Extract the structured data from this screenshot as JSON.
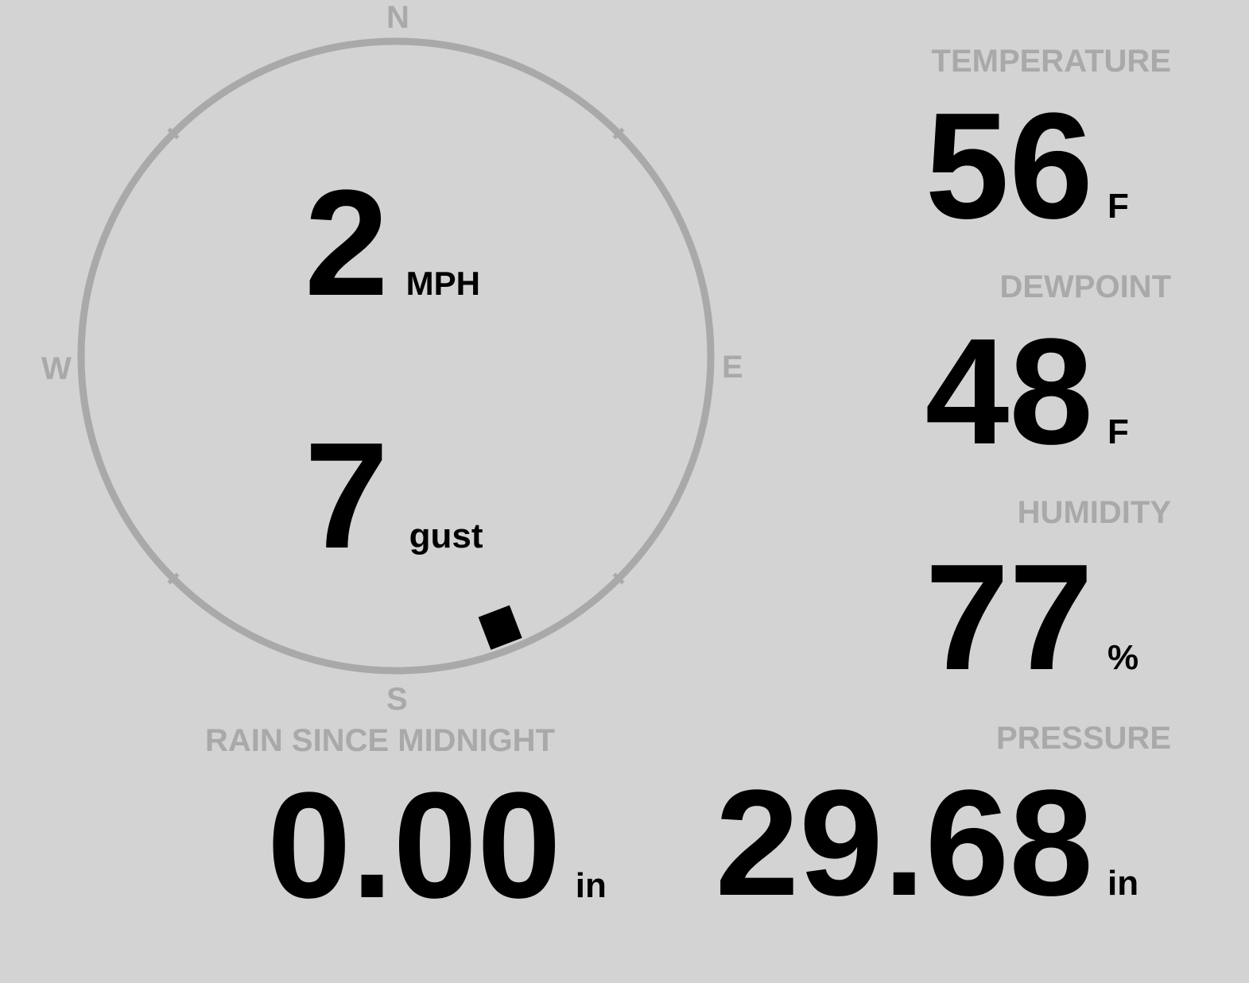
{
  "compass": {
    "north": "N",
    "south": "S",
    "east": "E",
    "west": "W",
    "wind_direction_deg": 159,
    "ring_color": "#a9a9a9"
  },
  "wind": {
    "speed": "2",
    "speed_unit": "MPH",
    "gust": "7",
    "gust_label": "gust"
  },
  "temperature": {
    "label": "TEMPERATURE",
    "value": "56",
    "unit": "F"
  },
  "dewpoint": {
    "label": "DEWPOINT",
    "value": "48",
    "unit": "F"
  },
  "humidity": {
    "label": "HUMIDITY",
    "value": "77",
    "unit": "%"
  },
  "pressure": {
    "label": "PRESSURE",
    "value": "29.68",
    "unit": "in"
  },
  "rain": {
    "label": "RAIN SINCE MIDNIGHT",
    "value": "0.00",
    "unit": "in"
  }
}
